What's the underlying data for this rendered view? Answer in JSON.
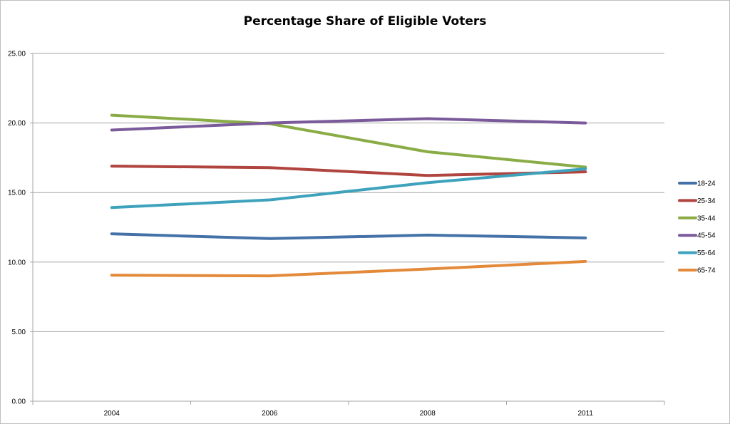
{
  "chart_data": {
    "type": "line",
    "title": "Percentage Share of Eligible Voters",
    "xlabel": "",
    "ylabel": "",
    "categories": [
      "2004",
      "2006",
      "2008",
      "2011"
    ],
    "ylim": [
      0,
      25
    ],
    "yticks": [
      "0.00",
      "5.00",
      "10.00",
      "15.00",
      "20.00",
      "25.00"
    ],
    "grid": "horizontal",
    "legend_position": "right",
    "series": [
      {
        "name": "18-24",
        "color": "#4472a8",
        "values": [
          12.03,
          11.69,
          11.94,
          11.74
        ]
      },
      {
        "name": "25-34",
        "color": "#b0443f",
        "values": [
          16.9,
          16.79,
          16.23,
          16.49
        ]
      },
      {
        "name": "35-44",
        "color": "#8aac47",
        "values": [
          20.56,
          19.95,
          17.93,
          16.83
        ]
      },
      {
        "name": "45-54",
        "color": "#7a5a9a",
        "values": [
          19.49,
          20.0,
          20.31,
          20.0
        ]
      },
      {
        "name": "55-64",
        "color": "#3ea2bd",
        "values": [
          13.92,
          14.47,
          15.71,
          16.7
        ]
      },
      {
        "name": "65-74",
        "color": "#e38a3a",
        "values": [
          9.06,
          9.01,
          9.5,
          10.05
        ]
      }
    ]
  }
}
